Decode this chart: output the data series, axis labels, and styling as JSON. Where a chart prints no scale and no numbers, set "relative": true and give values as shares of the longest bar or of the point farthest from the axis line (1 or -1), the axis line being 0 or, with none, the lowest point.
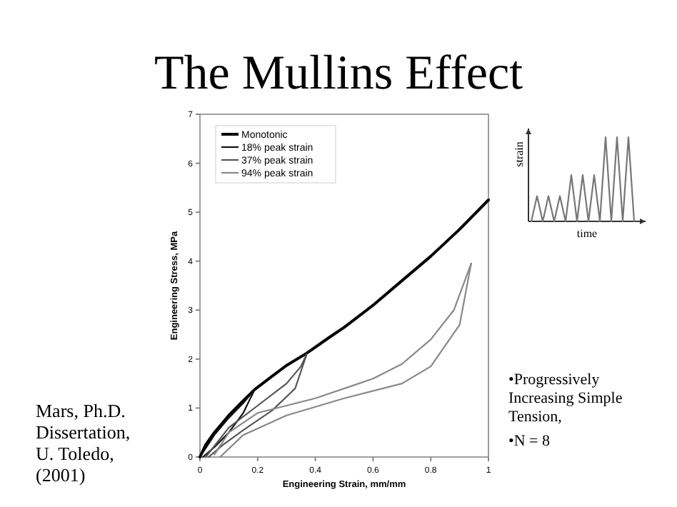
{
  "chart_data": [
    {
      "type": "line",
      "title": "The Mullins Effect",
      "xlabel": "Engineering Strain, mm/mm",
      "ylabel": "Engineering Stress, MPa",
      "xlim": [
        0,
        1
      ],
      "ylim": [
        0,
        7
      ],
      "xticks": [
        0,
        0.2,
        0.4,
        0.6,
        0.8,
        1
      ],
      "yticks": [
        0,
        1,
        2,
        3,
        4,
        5,
        6,
        7
      ],
      "grid": false,
      "legend": "top left",
      "marker": "none",
      "line_style": "solid",
      "series": [
        {
          "name": "Monotonic",
          "color": "#000000",
          "x": [
            0,
            0.02,
            0.05,
            0.1,
            0.15,
            0.19,
            0.25,
            0.3,
            0.37,
            0.45,
            0.5,
            0.6,
            0.7,
            0.8,
            0.9,
            1
          ],
          "values": [
            0,
            0.25,
            0.5,
            0.85,
            1.15,
            1.38,
            1.65,
            1.87,
            2.12,
            2.45,
            2.65,
            3.1,
            3.6,
            4.1,
            4.65,
            5.25
          ]
        },
        {
          "name": "18% peak strain",
          "color": "#111111",
          "x": [
            0,
            0.05,
            0.1,
            0.15,
            0.19
          ],
          "values": [
            0,
            0.45,
            0.8,
            1.1,
            1.38
          ]
        },
        {
          "color": "#111111",
          "x": [
            0.01,
            0.05,
            0.1,
            0.15,
            0.19
          ],
          "values": [
            0,
            0.2,
            0.5,
            0.9,
            1.38
          ]
        },
        {
          "name": "37% peak strain",
          "color": "#555555",
          "x": [
            0.02,
            0.1,
            0.2,
            0.3,
            0.35,
            0.37
          ],
          "values": [
            0,
            0.6,
            1.05,
            1.5,
            1.85,
            2.1
          ]
        },
        {
          "color": "#555555",
          "x": [
            0.03,
            0.08,
            0.15,
            0.25,
            0.33,
            0.37
          ],
          "values": [
            0,
            0.25,
            0.55,
            0.95,
            1.4,
            2.1
          ]
        },
        {
          "name": "94% peak strain",
          "color": "#888888",
          "x": [
            0.05,
            0.1,
            0.2,
            0.4,
            0.6,
            0.7,
            0.8,
            0.88,
            0.94
          ],
          "values": [
            0.05,
            0.5,
            0.9,
            1.2,
            1.6,
            1.9,
            2.4,
            3.0,
            3.95
          ]
        },
        {
          "color": "#888888",
          "x": [
            0.07,
            0.15,
            0.3,
            0.5,
            0.7,
            0.8,
            0.9,
            0.94
          ],
          "values": [
            0,
            0.45,
            0.85,
            1.2,
            1.5,
            1.85,
            2.7,
            3.95
          ]
        }
      ],
      "annotations": [
        "Mars, Ph.D. Dissertation, U. Toledo, (2001)",
        "•Progressively Increasing Simple Tension,",
        "•N = 8"
      ]
    },
    {
      "type": "line",
      "relative": true,
      "xlabel": "time",
      "ylabel": "strain",
      "categories": [
        null,
        null,
        null,
        null,
        null,
        null,
        null,
        null,
        null,
        null,
        null,
        null,
        null,
        null,
        null,
        null,
        null,
        null,
        null
      ],
      "series": [
        {
          "color": "#777777",
          "values": [
            0,
            0.3,
            0,
            0.3,
            0,
            0.3,
            0,
            0.55,
            0,
            0.55,
            0,
            0.55,
            0,
            1,
            0,
            1,
            0,
            1,
            0
          ]
        }
      ]
    }
  ]
}
